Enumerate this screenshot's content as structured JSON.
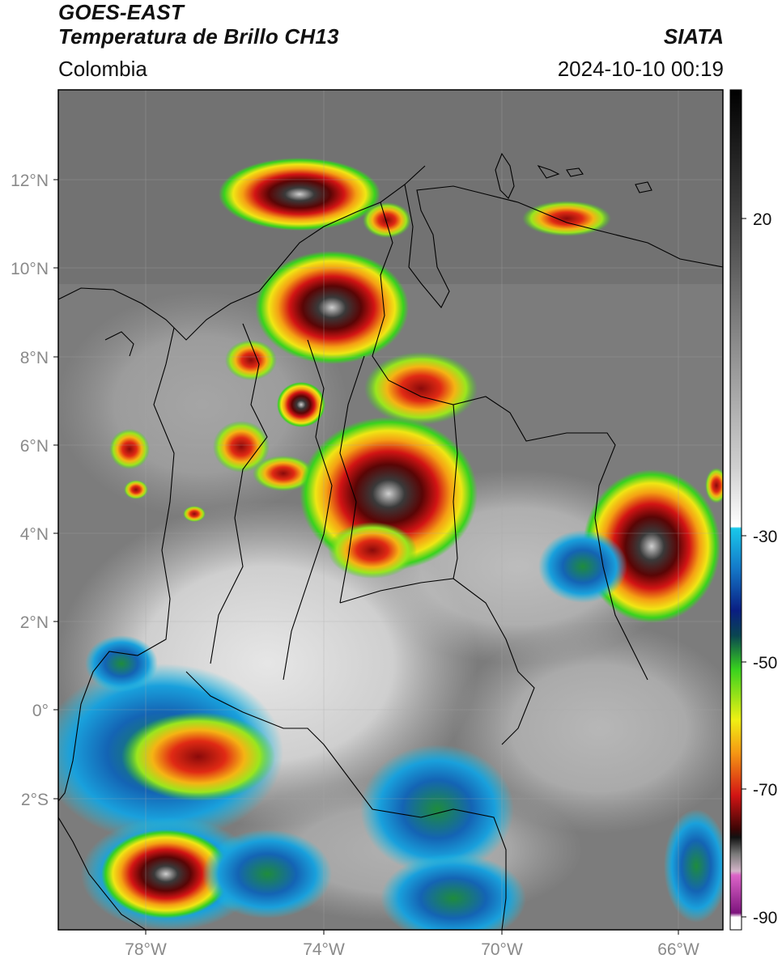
{
  "header": {
    "title_line1": "GOES-EAST",
    "title_line2": "Temperatura de Brillo CH13",
    "brand": "SIATA",
    "region": "Colombia",
    "timestamp": "2024-10-10 00:19"
  },
  "axes": {
    "lat_labels": [
      "12°N",
      "10°N",
      "8°N",
      "6°N",
      "4°N",
      "2°N",
      "0°",
      "2°S"
    ],
    "lon_labels": [
      "78°W",
      "74°W",
      "70°W",
      "66°W"
    ]
  },
  "colorbar": {
    "ticks": [
      "20",
      "-30",
      "-50",
      "-70",
      "-90"
    ],
    "colors": {
      "warm_top": "#111111",
      "gray_mid": "#8c8c8c",
      "white": "#f4f4f4",
      "cyan": "#19c3e6",
      "blue": "#1432a0",
      "green": "#38d21e",
      "yellow": "#f0e614",
      "orange": "#f07814",
      "red": "#c80a0a",
      "dark_red": "#5a0505",
      "magenta": "#d264c8",
      "purple": "#82147d"
    }
  }
}
